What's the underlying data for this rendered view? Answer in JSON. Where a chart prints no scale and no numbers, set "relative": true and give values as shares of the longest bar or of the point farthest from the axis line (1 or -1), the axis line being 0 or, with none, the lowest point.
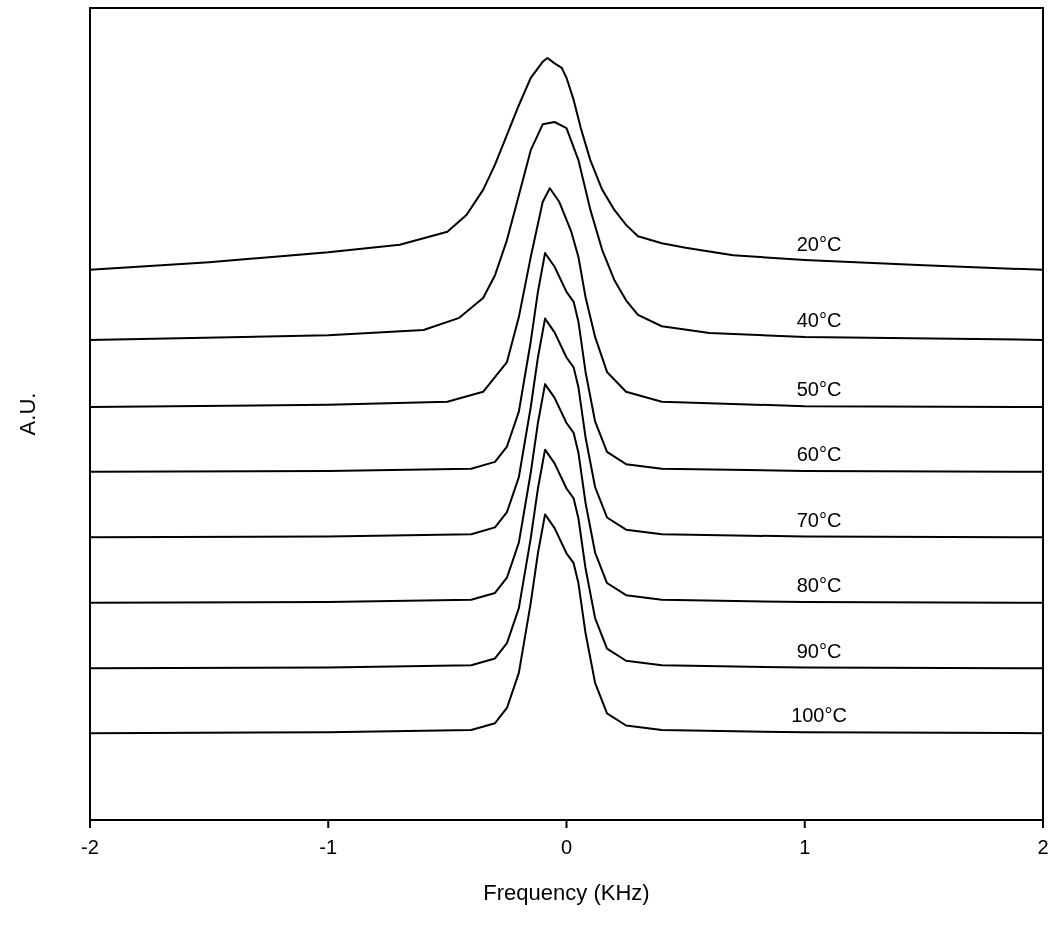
{
  "chart_data": {
    "type": "line",
    "relative": true,
    "xlabel": "Frequency (KHz)",
    "ylabel": "A.U.",
    "xlim": [
      -2,
      2
    ],
    "xticks": [
      -2,
      -1,
      0,
      1,
      2
    ],
    "grid": false,
    "marker": "none",
    "line_style": "solid",
    "tick_labels": "x",
    "series": [
      {
        "name": "20°C",
        "color": "#000000",
        "x": [
          -2,
          -1.5,
          -1,
          -0.7,
          -0.5,
          -0.42,
          -0.35,
          -0.3,
          -0.25,
          -0.2,
          -0.15,
          -0.1,
          -0.08,
          -0.05,
          -0.02,
          0,
          0.03,
          0.06,
          0.1,
          0.15,
          0.2,
          0.25,
          0.3,
          0.4,
          0.5,
          0.7,
          1,
          1.5,
          2
        ],
        "values": [
          0.722,
          0.732,
          0.745,
          0.755,
          0.772,
          0.794,
          0.827,
          0.86,
          0.899,
          0.938,
          0.974,
          0.995,
          1,
          0.993,
          0.987,
          0.974,
          0.945,
          0.908,
          0.866,
          0.827,
          0.801,
          0.781,
          0.766,
          0.757,
          0.751,
          0.741,
          0.735,
          0.728,
          0.722
        ]
      },
      {
        "name": "40°C",
        "color": "#000000",
        "x": [
          -2,
          -1,
          -0.6,
          -0.45,
          -0.35,
          -0.3,
          -0.25,
          -0.2,
          -0.15,
          -0.1,
          -0.05,
          0,
          0.05,
          0.1,
          0.15,
          0.2,
          0.25,
          0.3,
          0.4,
          0.6,
          1,
          2
        ],
        "values": [
          0.63,
          0.636,
          0.643,
          0.659,
          0.685,
          0.715,
          0.761,
          0.82,
          0.879,
          0.913,
          0.916,
          0.908,
          0.866,
          0.801,
          0.748,
          0.709,
          0.682,
          0.663,
          0.648,
          0.639,
          0.634,
          0.63
        ]
      },
      {
        "name": "50°C",
        "color": "#000000",
        "x": [
          -2,
          -1,
          -0.5,
          -0.35,
          -0.25,
          -0.2,
          -0.15,
          -0.1,
          -0.07,
          -0.03,
          0.02,
          0.05,
          0.08,
          0.12,
          0.17,
          0.25,
          0.4,
          1,
          2
        ],
        "values": [
          0.542,
          0.545,
          0.549,
          0.562,
          0.601,
          0.66,
          0.739,
          0.811,
          0.829,
          0.811,
          0.772,
          0.739,
          0.686,
          0.634,
          0.588,
          0.562,
          0.549,
          0.543,
          0.542
        ]
      },
      {
        "name": "60°C",
        "color": "#000000",
        "x": [
          -2,
          -1,
          -0.4,
          -0.3,
          -0.25,
          -0.2,
          -0.15,
          -0.12,
          -0.09,
          -0.05,
          0,
          0.03,
          0.05,
          0.08,
          0.12,
          0.17,
          0.25,
          0.4,
          1,
          2
        ],
        "values": [
          0.457,
          0.458,
          0.461,
          0.47,
          0.49,
          0.536,
          0.628,
          0.693,
          0.744,
          0.726,
          0.693,
          0.68,
          0.654,
          0.588,
          0.523,
          0.483,
          0.467,
          0.461,
          0.458,
          0.457
        ]
      },
      {
        "name": "70°C",
        "color": "#000000",
        "x": [
          -2,
          -1,
          -0.4,
          -0.3,
          -0.25,
          -0.2,
          -0.15,
          -0.12,
          -0.09,
          -0.05,
          0,
          0.03,
          0.05,
          0.08,
          0.12,
          0.17,
          0.25,
          0.4,
          1,
          2
        ],
        "values": [
          0.371,
          0.372,
          0.375,
          0.384,
          0.404,
          0.45,
          0.542,
          0.607,
          0.658,
          0.64,
          0.607,
          0.594,
          0.568,
          0.502,
          0.437,
          0.397,
          0.381,
          0.375,
          0.372,
          0.371
        ]
      },
      {
        "name": "80°C",
        "color": "#000000",
        "x": [
          -2,
          -1,
          -0.4,
          -0.3,
          -0.25,
          -0.2,
          -0.15,
          -0.12,
          -0.09,
          -0.05,
          0,
          0.03,
          0.05,
          0.08,
          0.12,
          0.17,
          0.25,
          0.4,
          1,
          2
        ],
        "values": [
          0.285,
          0.286,
          0.289,
          0.298,
          0.318,
          0.364,
          0.456,
          0.521,
          0.572,
          0.554,
          0.521,
          0.508,
          0.482,
          0.416,
          0.351,
          0.311,
          0.295,
          0.289,
          0.286,
          0.285
        ]
      },
      {
        "name": "90°C",
        "color": "#000000",
        "x": [
          -2,
          -1,
          -0.4,
          -0.3,
          -0.25,
          -0.2,
          -0.15,
          -0.12,
          -0.09,
          -0.05,
          0,
          0.03,
          0.05,
          0.08,
          0.12,
          0.17,
          0.25,
          0.4,
          1,
          2
        ],
        "values": [
          0.199,
          0.2,
          0.203,
          0.212,
          0.232,
          0.278,
          0.37,
          0.435,
          0.486,
          0.468,
          0.435,
          0.422,
          0.396,
          0.33,
          0.265,
          0.225,
          0.209,
          0.203,
          0.2,
          0.199
        ]
      },
      {
        "name": "100°C",
        "color": "#000000",
        "x": [
          -2,
          -1,
          -0.4,
          -0.3,
          -0.25,
          -0.2,
          -0.15,
          -0.12,
          -0.09,
          -0.05,
          0,
          0.03,
          0.05,
          0.08,
          0.12,
          0.17,
          0.25,
          0.4,
          1,
          2
        ],
        "values": [
          0.114,
          0.115,
          0.118,
          0.127,
          0.147,
          0.193,
          0.285,
          0.35,
          0.401,
          0.383,
          0.35,
          0.337,
          0.311,
          0.245,
          0.18,
          0.14,
          0.124,
          0.118,
          0.115,
          0.114
        ]
      }
    ]
  }
}
